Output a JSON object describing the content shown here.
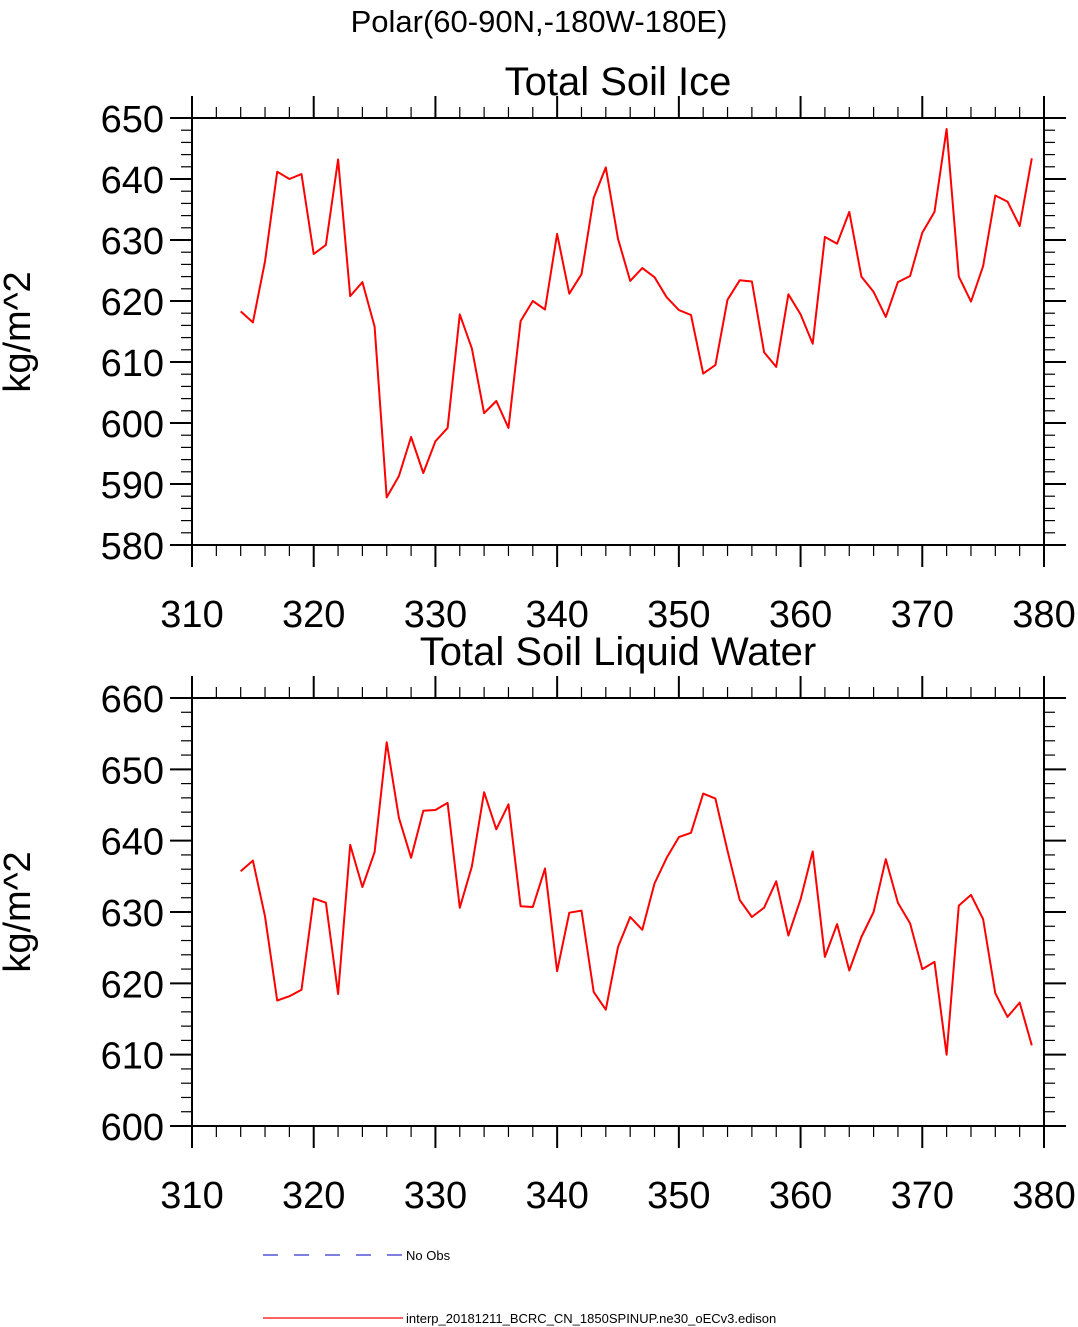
{
  "suptitle": "Polar(60-90N,-180W-180E)",
  "colors": {
    "model": "#ff0000",
    "obs": "#3333cc",
    "axes": "#000000"
  },
  "legend": {
    "obs_label": "No Obs",
    "model_label": "interp_20181211_BCRC_CN_1850SPINUP.ne30_oECv3.edison"
  },
  "chart_data": [
    {
      "type": "line",
      "title": "Total Soil Ice",
      "ylabel": "kg/m^2",
      "xlabel": "",
      "xlim": [
        310,
        380
      ],
      "ylim": [
        580,
        650
      ],
      "xticks": [
        310,
        320,
        330,
        340,
        350,
        360,
        370,
        380
      ],
      "yticks": [
        580,
        590,
        600,
        610,
        620,
        630,
        640,
        650
      ],
      "grid": false,
      "x_start": 314,
      "series": [
        {
          "color": "#ff0000",
          "values": [
            618.3,
            616.5,
            626.5,
            641.2,
            640.0,
            640.8,
            627.7,
            629.2,
            643.2,
            620.8,
            623.1,
            615.8,
            587.8,
            591.3,
            597.7,
            591.8,
            597.0,
            599.2,
            617.8,
            612.2,
            601.6,
            603.6,
            599.2,
            616.7,
            620.0,
            618.6,
            631.0,
            621.2,
            624.4,
            636.9,
            641.9,
            630.2,
            623.3,
            625.4,
            623.9,
            620.6,
            618.5,
            617.7,
            608.1,
            609.5,
            620.2,
            623.4,
            623.2,
            611.6,
            609.2,
            621.1,
            617.8,
            613.0,
            630.5,
            629.4,
            634.6,
            624.0,
            621.5,
            617.4,
            623.1,
            624.1,
            631.2,
            634.6,
            648.2,
            624.0,
            619.9,
            625.7,
            637.3,
            636.3,
            632.3,
            643.4
          ]
        }
      ]
    },
    {
      "type": "line",
      "title": "Total Soil Liquid Water",
      "ylabel": "kg/m^2",
      "xlabel": "",
      "xlim": [
        310,
        380
      ],
      "ylim": [
        600,
        660
      ],
      "xticks": [
        310,
        320,
        330,
        340,
        350,
        360,
        370,
        380
      ],
      "yticks": [
        600,
        610,
        620,
        630,
        640,
        650,
        660
      ],
      "grid": false,
      "x_start": 314,
      "series": [
        {
          "color": "#ff0000",
          "values": [
            635.7,
            637.2,
            629.4,
            617.6,
            618.2,
            619.1,
            631.9,
            631.3,
            618.5,
            639.4,
            633.5,
            638.4,
            653.8,
            643.2,
            637.6,
            644.2,
            644.3,
            645.3,
            630.6,
            636.4,
            646.8,
            641.6,
            645.1,
            630.8,
            630.7,
            636.1,
            621.7,
            629.9,
            630.2,
            618.8,
            616.3,
            625.1,
            629.3,
            627.5,
            634.0,
            637.6,
            640.5,
            641.1,
            646.6,
            645.9,
            638.6,
            631.7,
            629.3,
            630.6,
            634.3,
            626.7,
            631.8,
            638.5,
            623.7,
            628.3,
            621.8,
            626.5,
            630.0,
            637.4,
            631.3,
            628.4,
            622.0,
            623.0,
            610.0,
            630.9,
            632.4,
            629.0,
            618.6,
            615.3,
            617.3,
            611.3
          ]
        }
      ]
    }
  ]
}
